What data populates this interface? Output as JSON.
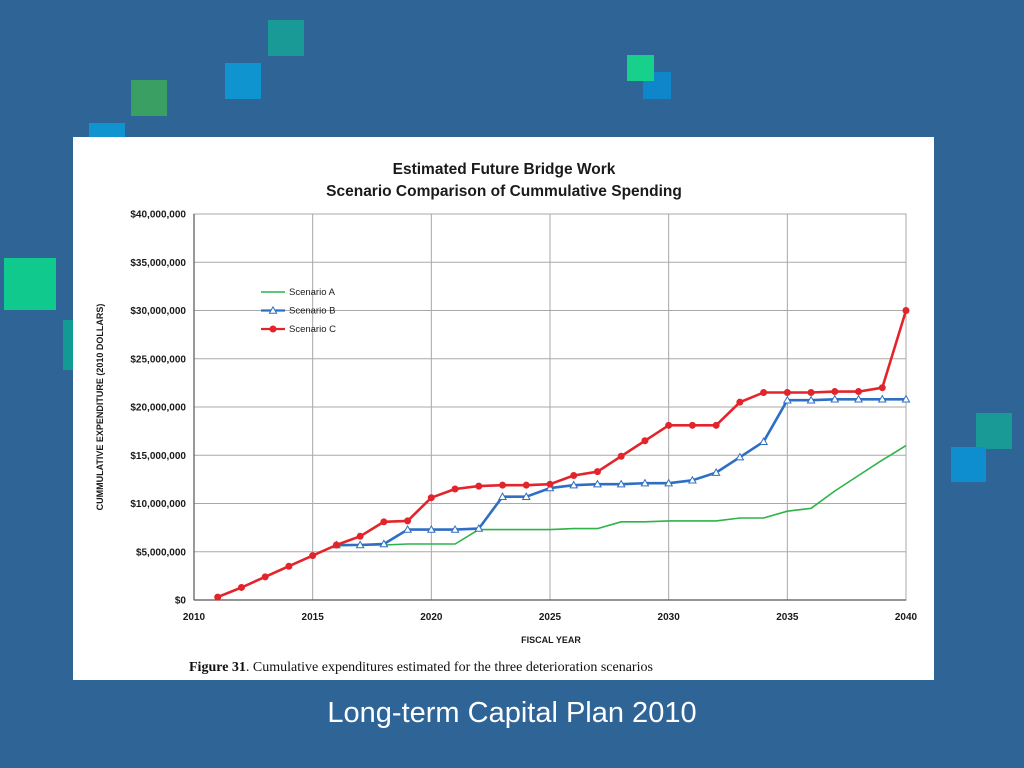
{
  "decor": {
    "squares": [
      {
        "color": "#1a9a96",
        "name": "teal-square"
      },
      {
        "color": "#0f94d0",
        "name": "blue-square"
      },
      {
        "color": "#3a9f62",
        "name": "green-square"
      },
      {
        "color": "#0f94d0",
        "name": "blue-square"
      },
      {
        "color": "#10c98c",
        "name": "mint-square"
      },
      {
        "color": "#119b94",
        "name": "teal-square"
      },
      {
        "color": "#0e86c9",
        "name": "blue-square"
      },
      {
        "color": "#17d08c",
        "name": "mint-square"
      },
      {
        "color": "#1a9a96",
        "name": "teal-square"
      },
      {
        "color": "#0e8ecf",
        "name": "blue-square"
      }
    ]
  },
  "slide": {
    "caption": "Long-term Capital Plan 2010"
  },
  "chart_data": {
    "type": "line",
    "title": "Estimated Future Bridge Work",
    "subtitle": "Scenario Comparison of Cummulative Spending",
    "xlabel": "FISCAL YEAR",
    "ylabel": "CUMMULATIVE EXPENDITURE (2010 DOLLARS)",
    "xlim": [
      2010,
      2040
    ],
    "ylim": [
      0,
      40000000
    ],
    "x_ticks": [
      2010,
      2015,
      2020,
      2025,
      2030,
      2035,
      2040
    ],
    "y_ticks": [
      0,
      5000000,
      10000000,
      15000000,
      20000000,
      25000000,
      30000000,
      35000000,
      40000000
    ],
    "y_tick_labels": [
      "$0",
      "$5,000,000",
      "$10,000,000",
      "$15,000,000",
      "$20,000,000",
      "$25,000,000",
      "$30,000,000",
      "$35,000,000",
      "$40,000,000"
    ],
    "x_tick_labels": [
      "2010",
      "2015",
      "2020",
      "2025",
      "2030",
      "2035",
      "2040"
    ],
    "grid": true,
    "legend_position": "upper-left",
    "series": [
      {
        "name": "Scenario A",
        "color": "#2db34a",
        "marker": "none",
        "x": [
          2016,
          2017,
          2018,
          2019,
          2020,
          2021,
          2022,
          2023,
          2024,
          2025,
          2026,
          2027,
          2028,
          2029,
          2030,
          2031,
          2032,
          2033,
          2034,
          2035,
          2036,
          2037,
          2038,
          2039,
          2040
        ],
        "y": [
          5600000,
          5700000,
          5700000,
          5800000,
          5800000,
          5800000,
          7300000,
          7300000,
          7300000,
          7300000,
          7400000,
          7400000,
          8100000,
          8100000,
          8200000,
          8200000,
          8200000,
          8500000,
          8500000,
          9200000,
          9500000,
          11300000,
          12900000,
          14500000,
          16000000
        ]
      },
      {
        "name": "Scenario B",
        "color": "#2e6fc4",
        "marker": "triangle",
        "x": [
          2016,
          2017,
          2018,
          2019,
          2020,
          2021,
          2022,
          2023,
          2024,
          2025,
          2026,
          2027,
          2028,
          2029,
          2030,
          2031,
          2032,
          2033,
          2034,
          2035,
          2036,
          2037,
          2038,
          2039,
          2040
        ],
        "y": [
          5700000,
          5700000,
          5800000,
          7300000,
          7300000,
          7300000,
          7400000,
          10700000,
          10700000,
          11600000,
          11900000,
          12000000,
          12000000,
          12100000,
          12100000,
          12400000,
          13200000,
          14800000,
          16400000,
          20700000,
          20700000,
          20800000,
          20800000,
          20800000,
          20800000
        ]
      },
      {
        "name": "Scenario C",
        "color": "#e3242b",
        "marker": "circle",
        "x": [
          2011,
          2012,
          2013,
          2014,
          2015,
          2016,
          2017,
          2018,
          2019,
          2020,
          2021,
          2022,
          2023,
          2024,
          2025,
          2026,
          2027,
          2028,
          2029,
          2030,
          2031,
          2032,
          2033,
          2034,
          2035,
          2036,
          2037,
          2038,
          2039,
          2040
        ],
        "y": [
          300000,
          1300000,
          2400000,
          3500000,
          4600000,
          5700000,
          6600000,
          8100000,
          8200000,
          10600000,
          11500000,
          11800000,
          11900000,
          11900000,
          12000000,
          12900000,
          13300000,
          14900000,
          16500000,
          18100000,
          18100000,
          18100000,
          20500000,
          21500000,
          21500000,
          21500000,
          21600000,
          21600000,
          22000000,
          30000000
        ]
      }
    ],
    "figure_caption_prefix": "Figure 31",
    "figure_caption": ". Cumulative expenditures estimated for the three deterioration scenarios"
  }
}
